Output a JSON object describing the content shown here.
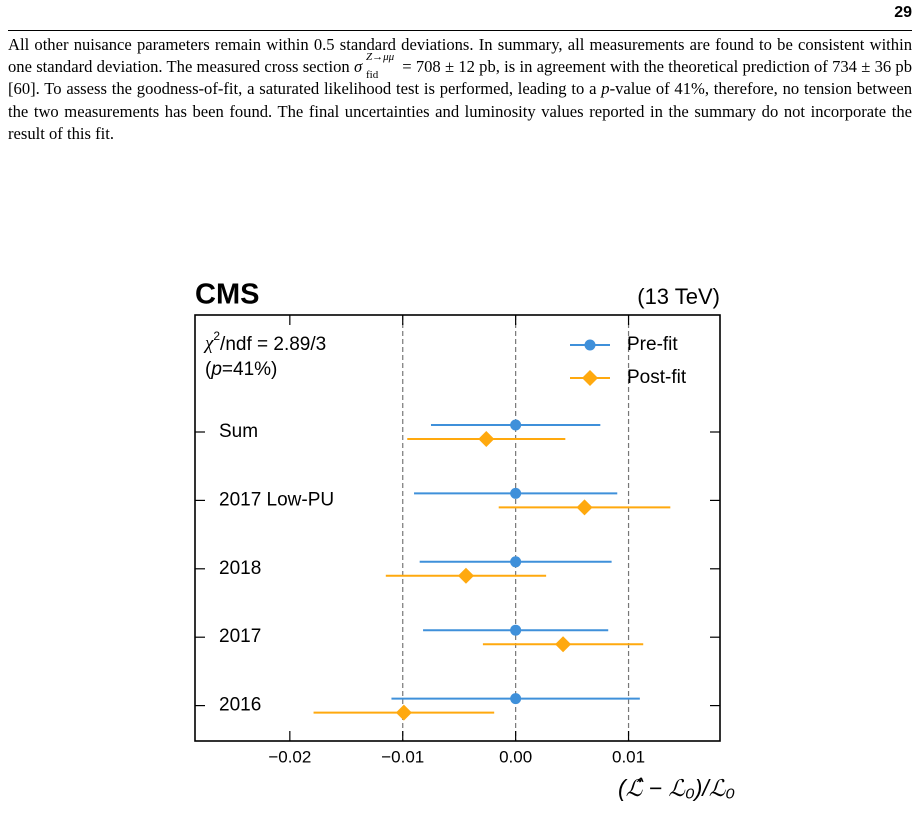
{
  "page_number": "29",
  "paragraph": {
    "text_1": "All other nuisance parameters remain within 0.5 standard deviations. In summary, all measurements are found to be consistent within one standard deviation. The measured cross section ",
    "sigma": "σ",
    "sigma_sup": "Z→μμ",
    "sigma_sub": "fid",
    "text_2": " = 708 ± 12 pb, is in agreement with the theoretical prediction of 734 ± 36 pb [60]. To assess the goodness-of-fit, a saturated likelihood test is performed, leading to a ",
    "p": "p",
    "text_3": "-value of 41%, therefore, no tension between the two measurements has been found. The final uncertainties and luminosity values reported in the summary do not incorporate the result of this fit."
  },
  "chart_data": {
    "type": "errorbar",
    "title": "CMS",
    "energy": "(13 TeV)",
    "annotation": {
      "chi": "χ",
      "chi_sup": "2",
      "chi_rest": "/ndf = 2.89/3",
      "p_open": "(",
      "p": "p",
      "p_rest": "=41%)"
    },
    "x_label": "(ℒ̂ − ℒ₀)/ℒ₀",
    "categories": [
      "Sum",
      "2017 Low-PU",
      "2018",
      "2017",
      "2016"
    ],
    "series": [
      {
        "name": "Pre-fit",
        "color": "#3f90da",
        "marker": "circle",
        "values": [
          0,
          0,
          0,
          0,
          0
        ],
        "errors": [
          0.0075,
          0.009,
          0.0085,
          0.0082,
          0.011
        ]
      },
      {
        "name": "Post-fit",
        "color": "#ffa90e",
        "marker": "diamond",
        "values": [
          -0.0026,
          0.0061,
          -0.0044,
          0.0042,
          -0.0099
        ],
        "errors": [
          0.007,
          0.0076,
          0.0071,
          0.0071,
          0.008
        ]
      }
    ],
    "xlim": [
      -0.0284,
      0.0181
    ],
    "xticks": [
      {
        "value": -0.02,
        "label": "−0.02"
      },
      {
        "value": -0.01,
        "label": "−0.01"
      },
      {
        "value": 0,
        "label": "0.00"
      },
      0.01
    ],
    "reference_lines": [
      -0.01,
      0,
      0.01
    ],
    "legend": "upper right"
  }
}
